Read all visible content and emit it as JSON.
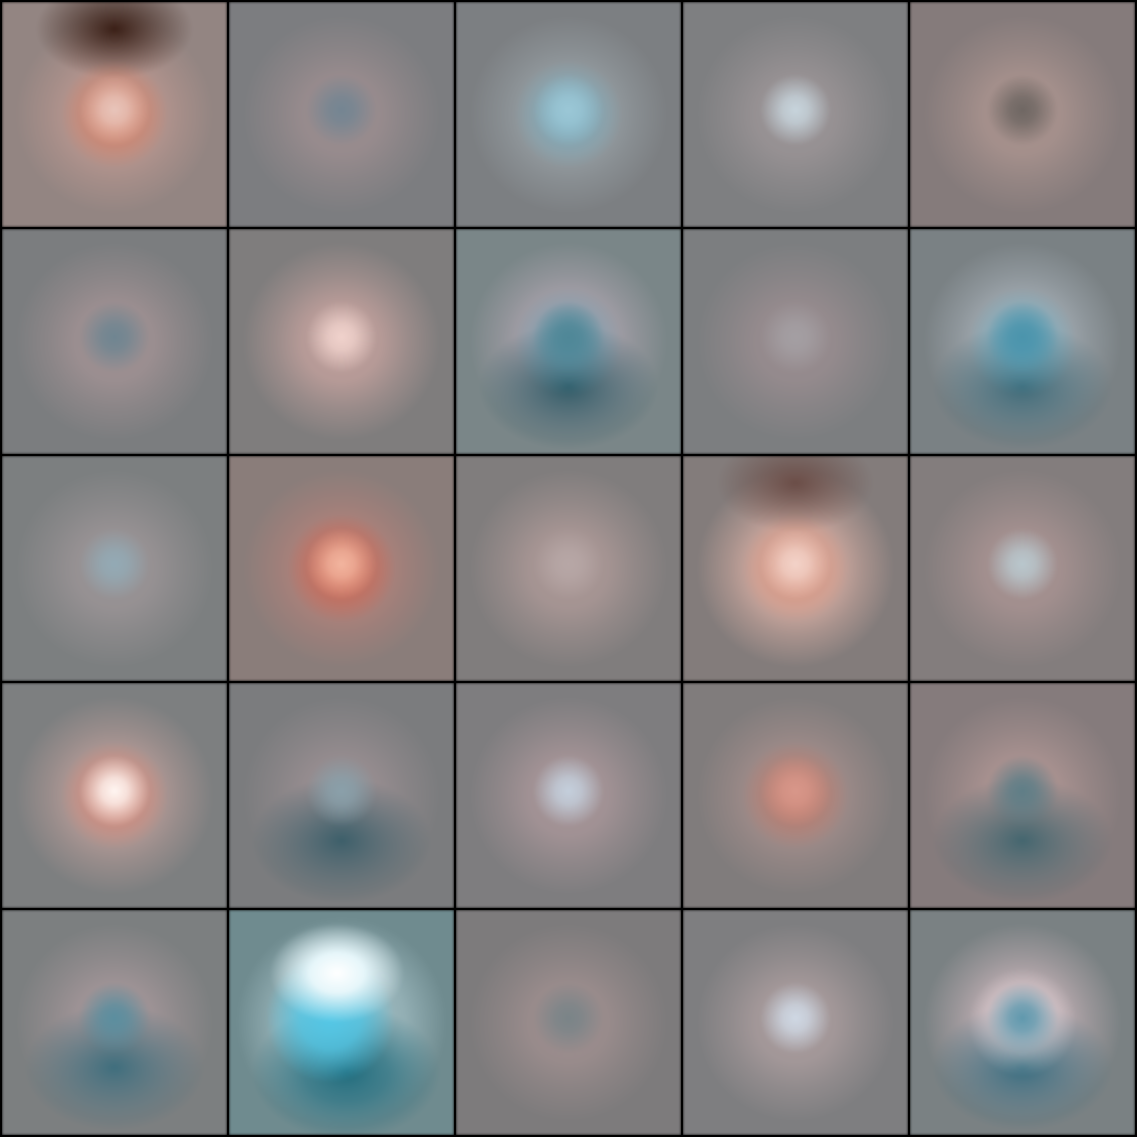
{
  "grid": {
    "rows": 5,
    "cols": 5,
    "background_color": "#000000",
    "tiles": [
      {
        "bg": "#938582",
        "ring": "#c09a92",
        "center": "#e8c5bb",
        "dark": "#3a1f16",
        "accent": "#e0724f",
        "style": "red-dark-top"
      },
      {
        "bg": "#7c7d80",
        "ring": "#9d8e90",
        "center": "#748592",
        "dark": null,
        "accent": null,
        "style": "ring"
      },
      {
        "bg": "#7c7f82",
        "ring": "#9aa3a8",
        "center": "#9bc7d6",
        "dark": null,
        "accent": "#6fb0c6",
        "style": "blue-center"
      },
      {
        "bg": "#7e7f81",
        "ring": "#9c9597",
        "center": "#c7d4dc",
        "dark": null,
        "accent": null,
        "style": "soft-dot"
      },
      {
        "bg": "#857b7b",
        "ring": "#ab948f",
        "center": "#6f6763",
        "dark": null,
        "accent": null,
        "style": "ring-dark"
      },
      {
        "bg": "#7b7d7f",
        "ring": "#a29294",
        "center": "#6f8591",
        "dark": null,
        "accent": null,
        "style": "ring"
      },
      {
        "bg": "#7f7d7d",
        "ring": "#c3a19d",
        "center": "#f0d2cc",
        "dark": null,
        "accent": null,
        "style": "pink-dot"
      },
      {
        "bg": "#7a8688",
        "ring": "#b3a8b3",
        "center": "#4f8797",
        "dark": "#2f5a66",
        "accent": "#4f95aa",
        "style": "blue-bottom"
      },
      {
        "bg": "#7c7e80",
        "ring": "#9a8d90",
        "center": "#a49fa3",
        "dark": null,
        "accent": null,
        "style": "soft-ring"
      },
      {
        "bg": "#7a8184",
        "ring": "#aab3bb",
        "center": "#4b94ac",
        "dark": "#3d6977",
        "accent": "#55a6bf",
        "style": "blue-bottom"
      },
      {
        "bg": "#7c7f80",
        "ring": "#9c9597",
        "center": "#93aab5",
        "dark": null,
        "accent": null,
        "style": "soft-dot"
      },
      {
        "bg": "#8a7d7a",
        "ring": "#b8827a",
        "center": "#f2b59f",
        "dark": null,
        "accent": "#d8563c",
        "style": "red-dot"
      },
      {
        "bg": "#807d7d",
        "ring": "#ad9997",
        "center": "#b7a7a6",
        "dark": null,
        "accent": null,
        "style": "soft-ring"
      },
      {
        "bg": "#837c7b",
        "ring": "#e0b3a7",
        "center": "#f3d3c9",
        "dark": "#6b4d47",
        "accent": "#d8866c",
        "style": "red-dark-top"
      },
      {
        "bg": "#837d7d",
        "ring": "#a99392",
        "center": "#b9c7cd",
        "dark": null,
        "accent": null,
        "style": "soft-dot"
      },
      {
        "bg": "#7d7f80",
        "ring": "#c0a09b",
        "center": "#fff6f2",
        "dark": null,
        "accent": "#e27b65",
        "style": "white-dot"
      },
      {
        "bg": "#7b7c7e",
        "ring": "#9a8f92",
        "center": "#8aa0aa",
        "dark": "#3d5f6a",
        "accent": null,
        "style": "blue-bottom-dim"
      },
      {
        "bg": "#7e7d7f",
        "ring": "#a99699",
        "center": "#c4cfdc",
        "dark": null,
        "accent": null,
        "style": "soft-dot"
      },
      {
        "bg": "#807c7c",
        "ring": "#aa918e",
        "center": "#d8978a",
        "dark": null,
        "accent": "#c66d58",
        "style": "soft-red"
      },
      {
        "bg": "#857b7c",
        "ring": "#ae9593",
        "center": "#5f7e87",
        "dark": "#44666f",
        "accent": null,
        "style": "ring-dark"
      },
      {
        "bg": "#7c7f80",
        "ring": "#a5979a",
        "center": "#5b8e9f",
        "dark": "#3f6e7d",
        "accent": null,
        "style": "blue-bottom-dim"
      },
      {
        "bg": "#6f8b8f",
        "ring": "#c7e3ea",
        "center": "#53c7e6",
        "dark": "#1f6b7c",
        "accent": "#e6f6fa",
        "style": "cyan-bright"
      },
      {
        "bg": "#7d7b7c",
        "ring": "#9f8f8f",
        "center": "#7a8488",
        "dark": null,
        "accent": null,
        "style": "ring"
      },
      {
        "bg": "#7e7e80",
        "ring": "#ab9d9e",
        "center": "#cfd8e4",
        "dark": null,
        "accent": null,
        "style": "soft-dot"
      },
      {
        "bg": "#7a8183",
        "ring": "#cab5ba",
        "center": "#5f98ad",
        "dark": "#356b7e",
        "accent": "#efe3e7",
        "style": "blue-bottom"
      }
    ]
  }
}
